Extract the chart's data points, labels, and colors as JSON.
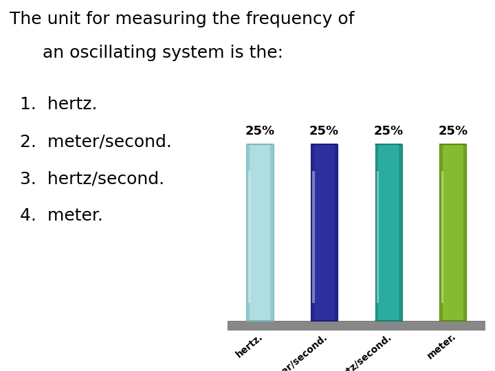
{
  "title_line1": "The unit for measuring the frequency of",
  "title_line2": "      an oscillating system is the:",
  "list_items": [
    "1.  hertz.",
    "2.  meter/second.",
    "3.  hertz/second.",
    "4.  meter."
  ],
  "bar_labels": [
    "hertz.",
    "meter/second.",
    "hertz/second.",
    "meter."
  ],
  "bar_values": [
    25,
    25,
    25,
    25
  ],
  "bar_colors": [
    "#b0dde0",
    "#2d2f9e",
    "#2aada0",
    "#85bb2f"
  ],
  "bar_dark_colors": [
    "#78b8bc",
    "#1a1c7a",
    "#1a8070",
    "#5a8a10"
  ],
  "bar_light_colors": [
    "#e8f8f8",
    "#5050cc",
    "#50cfc0",
    "#b0e050"
  ],
  "value_labels": [
    "25%",
    "25%",
    "25%",
    "25%"
  ],
  "background_color": "#ffffff",
  "text_color": "#000000",
  "title_fontsize": 18,
  "list_fontsize": 18,
  "value_fontsize": 13,
  "tick_fontsize": 10,
  "floor_color": "#888888"
}
